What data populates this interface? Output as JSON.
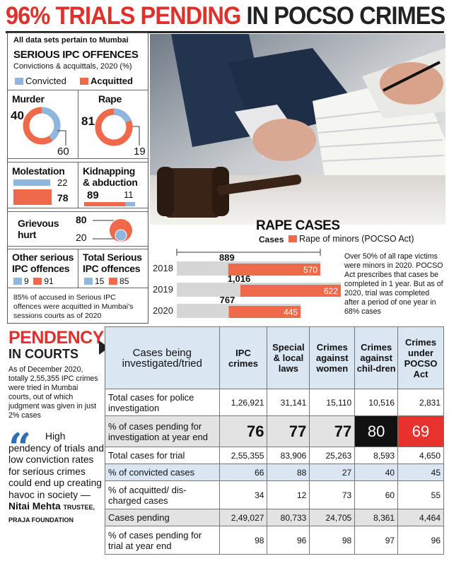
{
  "headline": {
    "red": "96% TRIALS PENDING",
    "dark": "IN POCSO CRIMES"
  },
  "colors": {
    "convicted": "#8fb6df",
    "acquitted": "#ee6a4b",
    "red": "#e0302b",
    "blue_fill": "#dbe6f3",
    "black_cell": "#111111",
    "red_cell": "#e8322d"
  },
  "left_panel": {
    "note_top": "All data sets pertain to Mumbai",
    "title": "SERIOUS IPC OFFENCES",
    "subtitle": "Convictions & acquittals, 2020 (%)",
    "legend_convicted": "Convicted",
    "legend_acquitted": "Acquitted",
    "murder": {
      "label": "Murder",
      "convicted": "40",
      "acquitted": "60"
    },
    "rape": {
      "label": "Rape",
      "acquitted": "81",
      "convicted": "19"
    },
    "molestation": {
      "label": "Molestation",
      "convicted": "22",
      "acquitted": "78"
    },
    "kidnapping": {
      "label1": "Kidnapping",
      "label2": "& abduction",
      "acquitted": "89",
      "convicted": "11"
    },
    "grievous": {
      "label1": "Grievous",
      "label2": "hurt",
      "acquitted": "80",
      "convicted": "20"
    },
    "other": {
      "label1": "Other serious",
      "label2": "IPC offences",
      "convicted": "9",
      "acquitted": "91"
    },
    "total": {
      "label1": "Total Serious",
      "label2": "IPC offences",
      "convicted": "15",
      "acquitted": "85"
    },
    "footnote": "85% of accused in Serious IPC offences were acquitted in Mumbai's sessions courts as of 2020"
  },
  "rape_cases": {
    "title": "RAPE CASES",
    "legend_cases": "Cases",
    "legend_pocso": "Rape of minors (POCSO Act)",
    "note": "Over 50% of all rape victims were minors in 2020. POCSO Act prescribes that cases be completed in 1 year. But as of 2020, trial was completed after a period of one year in 68% cases"
  },
  "chart_data": {
    "type": "bar",
    "title": "RAPE CASES",
    "categories": [
      "2018",
      "2019",
      "2020"
    ],
    "series": [
      {
        "name": "Cases",
        "values": [
          889,
          1016,
          767
        ]
      },
      {
        "name": "Rape of minors (POCSO Act)",
        "values": [
          570,
          622,
          445
        ]
      }
    ],
    "labels": {
      "total_2018": "889",
      "total_2019": "1,016",
      "total_2020": "767"
    },
    "xlim": [
      0,
      1016
    ]
  },
  "pendency": {
    "title1": "PENDENCY",
    "title2": "IN COURTS",
    "text": "As of December 2020, totally 2,55,355 IPC crimes were tried in Mumbai courts, out of which judgment was given in just 2% cases"
  },
  "quote": {
    "text": "High pendency of trials and low conviction rates for serious crimes could end up creating havoc in society —",
    "author1": "Nitai",
    "author2": "Mehta",
    "role1": "TRUSTEE,",
    "role2": "PRAJA FOUNDATION"
  },
  "table": {
    "header": [
      "Cases being investigated/tried",
      "IPC crimes",
      "Special & local laws",
      "Crimes against women",
      "Crimes against chil-dren",
      "Crimes under POCSO Act"
    ],
    "rows": [
      {
        "label": "Total cases for police investigation",
        "values": [
          "1,26,921",
          "31,141",
          "15,110",
          "10,516",
          "2,831"
        ]
      },
      {
        "label": "% of cases pending for investigation at year end",
        "values": [
          "76",
          "77",
          "77",
          "80",
          "69"
        ]
      },
      {
        "label": "Total cases for trial",
        "values": [
          "2,55,355",
          "83,906",
          "25,263",
          "8,593",
          "4,650"
        ]
      },
      {
        "label": "% of convicted cases",
        "values": [
          "66",
          "88",
          "27",
          "40",
          "45"
        ]
      },
      {
        "label": "% of acquitted/ dis-charged cases",
        "values": [
          "34",
          "12",
          "73",
          "60",
          "55"
        ]
      },
      {
        "label": "Cases pending",
        "values": [
          "2,49,027",
          "80,733",
          "24,705",
          "8,361",
          "4,464"
        ]
      },
      {
        "label": "% of cases pending for trial at year end",
        "values": [
          "98",
          "96",
          "98",
          "97",
          "96"
        ]
      }
    ]
  }
}
